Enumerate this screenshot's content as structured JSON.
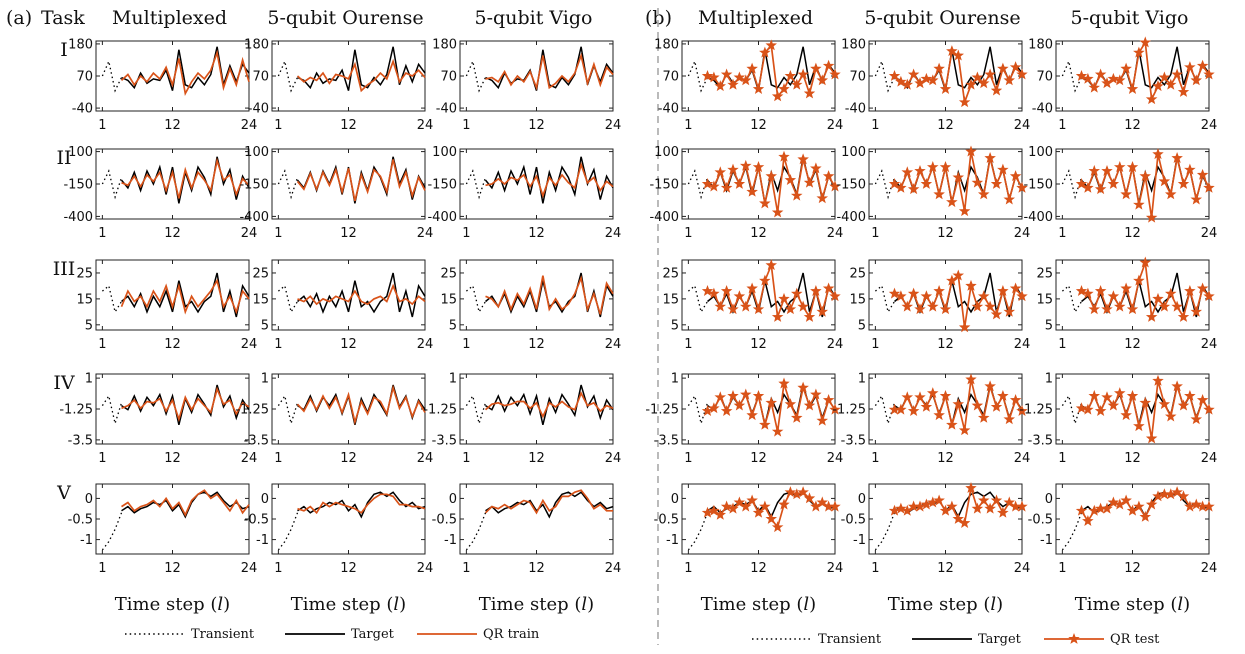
{
  "panels": [
    {
      "label": "(a)",
      "task_header": "Task",
      "mode": "train",
      "columns": [
        "Multiplexed",
        "5-qubit Ourense",
        "5-qubit Vigo"
      ],
      "legend": [
        "Transient",
        "Target",
        "QR train"
      ]
    },
    {
      "label": "(b)",
      "mode": "test",
      "columns": [
        "Multiplexed",
        "5-qubit Ourense",
        "5-qubit Vigo"
      ],
      "legend": [
        "Transient",
        "Target",
        "QR test"
      ]
    }
  ],
  "rows": [
    "I",
    "II",
    "III",
    "IV",
    "V"
  ],
  "xlabel": "Time step (l)",
  "xlabel_parts": [
    "Time step (",
    "l",
    ")"
  ],
  "colors": {
    "target": "#000000",
    "prediction": "#d95319",
    "transient": "#000000",
    "divider": "#aaaaaa"
  },
  "chart_data": {
    "type": "line",
    "xlim": [
      0,
      24
    ],
    "xticks": [
      1,
      12,
      24
    ],
    "transient_steps": [
      1,
      2,
      3,
      4
    ],
    "predict_steps": [
      4,
      24
    ],
    "tasks": [
      {
        "id": "I",
        "ylim": [
          -50,
          190
        ],
        "yticks": [
          180,
          70,
          -40
        ],
        "ytick_labels": [
          "180",
          "70",
          "-40"
        ],
        "transient": [
          70,
          120,
          20,
          65
        ],
        "target": [
          65,
          55,
          30,
          80,
          45,
          60,
          55,
          90,
          20,
          160,
          40,
          30,
          65,
          40,
          75,
          170,
          40,
          105,
          50,
          110,
          80
        ],
        "train_pred": [
          [
            55,
            75,
            40,
            70,
            50,
            80,
            60,
            100,
            40,
            130,
            10,
            50,
            80,
            60,
            90,
            150,
            30,
            95,
            40,
            125,
            50
          ],
          [
            70,
            50,
            65,
            55,
            80,
            45,
            75,
            70,
            60,
            110,
            20,
            40,
            55,
            80,
            60,
            120,
            50,
            80,
            70,
            90,
            65
          ],
          [
            60,
            65,
            50,
            85,
            40,
            70,
            50,
            85,
            30,
            140,
            30,
            45,
            70,
            50,
            80,
            140,
            45,
            110,
            40,
            100,
            75
          ]
        ],
        "test_pred": [
          [
            70,
            65,
            35,
            75,
            40,
            65,
            55,
            95,
            25,
            150,
            175,
            0,
            25,
            70,
            40,
            75,
            10,
            95,
            55,
            105,
            75
          ],
          [
            70,
            50,
            40,
            75,
            45,
            60,
            55,
            95,
            25,
            155,
            140,
            -20,
            40,
            65,
            45,
            75,
            20,
            95,
            55,
            100,
            75
          ],
          [
            70,
            60,
            30,
            75,
            45,
            60,
            55,
            95,
            25,
            150,
            185,
            -10,
            35,
            65,
            40,
            75,
            15,
            100,
            55,
            105,
            75
          ]
        ]
      },
      {
        "id": "II",
        "ylim": [
          -420,
          120
        ],
        "yticks": [
          100,
          -150,
          -400
        ],
        "ytick_labels": [
          "100",
          "-150",
          "-400"
        ],
        "transient": [
          -150,
          -50,
          -250,
          -100
        ],
        "target": [
          -120,
          -180,
          -60,
          -200,
          -50,
          -150,
          -20,
          -230,
          -20,
          -300,
          -60,
          -200,
          -20,
          -100,
          -230,
          60,
          -150,
          -40,
          -270,
          -90,
          -180
        ],
        "train_pred": [
          [
            -140,
            -160,
            -90,
            -170,
            -80,
            -130,
            -60,
            -200,
            -60,
            -260,
            -40,
            -180,
            -60,
            -120,
            -200,
            30,
            -120,
            -80,
            -230,
            -110,
            -160
          ],
          [
            -130,
            -190,
            -70,
            -190,
            -60,
            -160,
            -40,
            -210,
            -30,
            -280,
            -80,
            -210,
            -40,
            -90,
            -210,
            40,
            -170,
            -60,
            -240,
            -100,
            -200
          ],
          [
            -160,
            -150,
            -110,
            -150,
            -100,
            -120,
            -80,
            -170,
            -90,
            -240,
            -100,
            -160,
            -80,
            -140,
            -180,
            0,
            -140,
            -100,
            -200,
            -130,
            -170
          ]
        ],
        "test_pred": [
          [
            -150,
            -170,
            -60,
            -180,
            -40,
            -150,
            -10,
            -210,
            -20,
            -300,
            -90,
            -370,
            60,
            -120,
            -240,
            40,
            -140,
            -30,
            -260,
            -90,
            -170
          ],
          [
            -150,
            -180,
            -60,
            -190,
            -50,
            -150,
            -20,
            -230,
            -20,
            -290,
            -100,
            -360,
            100,
            -140,
            -230,
            50,
            -150,
            -40,
            -270,
            -90,
            -180
          ],
          [
            -150,
            -180,
            -50,
            -190,
            -50,
            -150,
            -20,
            -230,
            -20,
            -310,
            -90,
            -410,
            80,
            -130,
            -230,
            50,
            -150,
            -40,
            -270,
            -80,
            -180
          ]
        ]
      },
      {
        "id": "III",
        "ylim": [
          3,
          30
        ],
        "yticks": [
          25,
          15,
          5
        ],
        "ytick_labels": [
          "25",
          "15",
          "5"
        ],
        "transient": [
          18,
          20,
          10,
          14
        ],
        "target": [
          14,
          16,
          12,
          17,
          10,
          16,
          12,
          18,
          10,
          22,
          12,
          14,
          10,
          14,
          16,
          25,
          10,
          18,
          8,
          20,
          16
        ],
        "train_pred": [
          [
            12,
            18,
            14,
            16,
            12,
            18,
            14,
            20,
            12,
            20,
            10,
            16,
            12,
            15,
            18,
            22,
            12,
            16,
            10,
            18,
            15
          ],
          [
            15,
            14,
            16,
            13,
            15,
            14,
            16,
            15,
            14,
            18,
            14,
            13,
            15,
            16,
            14,
            20,
            14,
            15,
            13,
            16,
            14
          ],
          [
            16,
            15,
            12,
            18,
            11,
            17,
            13,
            19,
            11,
            24,
            11,
            15,
            11,
            13,
            17,
            23,
            11,
            17,
            9,
            21,
            17
          ]
        ],
        "test_pred": [
          [
            18,
            17,
            12,
            18,
            11,
            16,
            12,
            19,
            11,
            22,
            28,
            8,
            15,
            11,
            17,
            12,
            8,
            18,
            10,
            19,
            16
          ],
          [
            17,
            16,
            12,
            17,
            11,
            16,
            12,
            18,
            11,
            22,
            24,
            4,
            20,
            12,
            16,
            12,
            9,
            18,
            10,
            19,
            16
          ],
          [
            18,
            17,
            11,
            18,
            11,
            16,
            12,
            19,
            11,
            22,
            29,
            8,
            15,
            12,
            17,
            12,
            8,
            18,
            10,
            19,
            16
          ]
        ]
      },
      {
        "id": "IV",
        "ylim": [
          -3.8,
          1.3
        ],
        "yticks": [
          1,
          -1.25,
          -3.5
        ],
        "ytick_labels": [
          "1",
          "-1.25",
          "-3.5"
        ],
        "transient": [
          -1.0,
          -0.3,
          -2.3,
          -0.8
        ],
        "target": [
          -1.0,
          -1.3,
          -0.3,
          -1.4,
          -0.4,
          -1.0,
          -0.2,
          -1.6,
          -0.3,
          -2.4,
          -0.5,
          -1.5,
          -0.2,
          -0.9,
          -1.7,
          0.5,
          -1.1,
          -0.3,
          -1.9,
          -0.6,
          -1.3
        ],
        "train_pred": [
          [
            -1.2,
            -1.0,
            -0.6,
            -1.2,
            -0.7,
            -0.8,
            -0.5,
            -1.4,
            -0.6,
            -2.0,
            -0.4,
            -1.3,
            -0.5,
            -1.0,
            -1.5,
            0.2,
            -0.9,
            -0.6,
            -1.6,
            -0.8,
            -1.1
          ],
          [
            -0.9,
            -1.4,
            -0.5,
            -1.3,
            -0.3,
            -1.2,
            -0.4,
            -1.5,
            -0.2,
            -2.2,
            -0.7,
            -1.6,
            -0.4,
            -0.7,
            -1.6,
            0.3,
            -1.2,
            -0.4,
            -1.8,
            -0.7,
            -1.5
          ],
          [
            -1.3,
            -0.9,
            -0.8,
            -1.0,
            -0.9,
            -0.7,
            -0.7,
            -1.2,
            -0.8,
            -1.8,
            -0.8,
            -1.1,
            -0.7,
            -1.1,
            -1.3,
            -0.1,
            -1.0,
            -0.8,
            -1.4,
            -1.0,
            -1.2
          ]
        ],
        "test_pred": [
          [
            -1.4,
            -1.2,
            -0.4,
            -1.4,
            -0.3,
            -1.0,
            -0.2,
            -1.7,
            -0.3,
            -2.4,
            -0.8,
            -2.9,
            0.6,
            -0.9,
            -1.9,
            0.3,
            -1.0,
            -0.2,
            -2.1,
            -0.6,
            -1.3
          ],
          [
            -1.3,
            -1.3,
            -0.4,
            -1.4,
            -0.4,
            -1.1,
            -0.1,
            -1.7,
            -0.3,
            -2.4,
            -0.9,
            -2.8,
            0.9,
            -1.0,
            -1.9,
            0.4,
            -1.1,
            -0.3,
            -2.0,
            -0.6,
            -1.4
          ],
          [
            -1.2,
            -1.3,
            -0.3,
            -1.4,
            -0.4,
            -1.0,
            -0.1,
            -1.7,
            -0.3,
            -2.5,
            -0.8,
            -3.4,
            0.8,
            -0.9,
            -1.8,
            0.4,
            -1.0,
            -0.3,
            -2.0,
            -0.6,
            -1.3
          ]
        ]
      },
      {
        "id": "V",
        "ylim": [
          -1.35,
          0.35
        ],
        "yticks": [
          0,
          -0.5,
          -1
        ],
        "ytick_labels": [
          "0",
          "-0.5",
          "-1"
        ],
        "transient": [
          -1.25,
          -1.05,
          -0.75,
          -0.35
        ],
        "target": [
          -0.3,
          -0.2,
          -0.35,
          -0.25,
          -0.2,
          -0.1,
          -0.15,
          -0.05,
          -0.3,
          -0.15,
          -0.45,
          -0.1,
          0.1,
          0.15,
          0.05,
          0.15,
          -0.05,
          -0.2,
          -0.1,
          -0.25,
          -0.2
        ],
        "train_pred": [
          [
            -0.2,
            -0.1,
            -0.3,
            -0.2,
            -0.15,
            -0.05,
            -0.2,
            0.0,
            -0.25,
            -0.1,
            -0.4,
            -0.05,
            0.1,
            0.2,
            0.0,
            0.1,
            -0.1,
            -0.3,
            -0.05,
            -0.35,
            -0.15
          ],
          [
            -0.25,
            -0.3,
            -0.2,
            -0.35,
            -0.1,
            -0.2,
            -0.1,
            -0.15,
            -0.2,
            -0.25,
            -0.35,
            -0.15,
            0.0,
            0.1,
            0.1,
            0.05,
            -0.15,
            -0.15,
            -0.2,
            -0.2,
            -0.25
          ],
          [
            -0.35,
            -0.2,
            -0.25,
            -0.15,
            -0.25,
            -0.15,
            -0.05,
            -0.1,
            -0.35,
            -0.05,
            -0.3,
            -0.2,
            0.05,
            0.05,
            0.15,
            0.2,
            0.0,
            -0.25,
            -0.15,
            -0.3,
            -0.3
          ]
        ],
        "test_pred": [
          [
            -0.35,
            -0.3,
            -0.4,
            -0.2,
            -0.25,
            -0.1,
            -0.2,
            -0.05,
            -0.35,
            -0.2,
            -0.5,
            -0.7,
            -0.15,
            0.15,
            0.1,
            0.15,
            0.0,
            -0.2,
            -0.1,
            -0.2,
            -0.2
          ],
          [
            -0.3,
            -0.25,
            -0.3,
            -0.2,
            -0.2,
            -0.15,
            -0.1,
            -0.05,
            -0.3,
            -0.2,
            -0.5,
            -0.6,
            0.25,
            -0.25,
            -0.05,
            -0.25,
            -0.05,
            -0.35,
            -0.1,
            -0.2,
            -0.2
          ],
          [
            -0.3,
            -0.55,
            -0.3,
            -0.25,
            -0.25,
            -0.1,
            -0.15,
            -0.05,
            -0.3,
            -0.2,
            -0.45,
            -0.15,
            0.05,
            0.1,
            0.1,
            0.15,
            0.05,
            -0.2,
            -0.15,
            -0.2,
            -0.2
          ]
        ]
      }
    ]
  }
}
